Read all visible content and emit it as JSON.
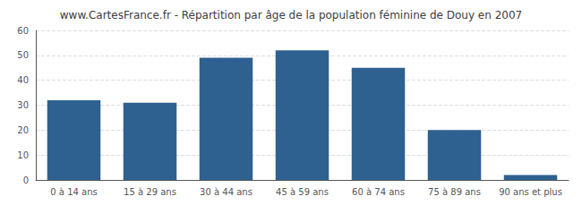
{
  "chart_data": {
    "type": "bar",
    "title": "www.CartesFrance.fr - Répartition par âge de la population féminine de Douy en 2007",
    "categories": [
      "0 à 14 ans",
      "15 à 29 ans",
      "30 à 44 ans",
      "45 à 59 ans",
      "60 à 74 ans",
      "75 à 89 ans",
      "90 ans et plus"
    ],
    "values": [
      32,
      31,
      49,
      52,
      45,
      20,
      2
    ],
    "color": "#2e6190",
    "ylim": [
      0,
      60
    ],
    "yticks": [
      0,
      10,
      20,
      30,
      40,
      50,
      60
    ],
    "grid": true
  }
}
